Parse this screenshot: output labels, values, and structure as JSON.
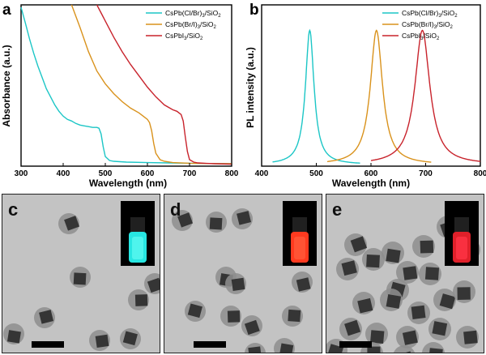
{
  "figure": {
    "panels": {
      "a": "a",
      "b": "b",
      "c": "c",
      "d": "d",
      "e": "e"
    }
  },
  "chart_data": [
    {
      "type": "line",
      "panel": "a",
      "ylabel": "Absorbance (a.u.)",
      "xlabel": "Wavelength (nm)",
      "xlim": [
        300,
        800
      ],
      "xticks": [
        "300",
        "400",
        "500",
        "600",
        "700",
        "800"
      ],
      "y_ticks_shown": false,
      "legend_position": "top-right",
      "series": [
        {
          "name": "CsPb(Cl/Br)3/SiO2",
          "color": "#1cc6c6",
          "x": [
            300,
            310,
            320,
            330,
            340,
            350,
            360,
            370,
            380,
            390,
            400,
            410,
            420,
            430,
            440,
            450,
            460,
            470,
            480,
            485,
            490,
            495,
            500,
            510,
            520,
            550,
            600,
            650,
            700,
            750,
            800
          ],
          "y": [
            0.985,
            0.89,
            0.79,
            0.7,
            0.62,
            0.55,
            0.48,
            0.43,
            0.38,
            0.34,
            0.31,
            0.29,
            0.28,
            0.265,
            0.255,
            0.25,
            0.245,
            0.24,
            0.24,
            0.235,
            0.2,
            0.12,
            0.06,
            0.035,
            0.03,
            0.025,
            0.022,
            0.02,
            0.018,
            0.016,
            0.015
          ]
        },
        {
          "name": "CsPb(Br/I)3/SiO2",
          "color": "#d9921c",
          "x": [
            420,
            440,
            460,
            480,
            500,
            520,
            540,
            560,
            580,
            590,
            600,
            605,
            610,
            615,
            620,
            630,
            640,
            660,
            700,
            750,
            800
          ],
          "y": [
            1.0,
            0.86,
            0.71,
            0.59,
            0.51,
            0.45,
            0.4,
            0.36,
            0.33,
            0.31,
            0.29,
            0.27,
            0.22,
            0.14,
            0.08,
            0.04,
            0.03,
            0.022,
            0.018,
            0.016,
            0.015
          ]
        },
        {
          "name": "CsPbI3/SiO2",
          "color": "#c8232c",
          "x": [
            480,
            500,
            520,
            540,
            560,
            580,
            600,
            620,
            640,
            660,
            670,
            680,
            685,
            690,
            695,
            700,
            710,
            720,
            740,
            760,
            800
          ],
          "y": [
            1.0,
            0.9,
            0.8,
            0.71,
            0.63,
            0.56,
            0.49,
            0.43,
            0.38,
            0.35,
            0.34,
            0.32,
            0.28,
            0.18,
            0.09,
            0.04,
            0.025,
            0.02,
            0.017,
            0.015,
            0.012
          ]
        }
      ]
    },
    {
      "type": "line",
      "panel": "b",
      "ylabel": "PL intensity (a.u.)",
      "xlabel": "Wavelength (nm)",
      "xlim": [
        400,
        800
      ],
      "xticks": [
        "400",
        "500",
        "600",
        "700",
        "800"
      ],
      "y_ticks_shown": false,
      "legend_position": "top-right",
      "series": [
        {
          "name": "CsPb(Cl/Br)3/SiO2",
          "color": "#1cc6c6",
          "peak_x": 488,
          "peak_y": 0.84,
          "fwhm": 19,
          "x_min": 420,
          "x_max": 580
        },
        {
          "name": "CsPb(Br/I)3/SiO2",
          "color": "#d9921c",
          "peak_x": 610,
          "peak_y": 0.84,
          "fwhm": 27,
          "x_min": 520,
          "x_max": 710
        },
        {
          "name": "CsPbI3/SiO2",
          "color": "#c8232c",
          "peak_x": 694,
          "peak_y": 0.84,
          "fwhm": 33,
          "x_min": 600,
          "x_max": 800
        }
      ]
    }
  ],
  "tem_panels": [
    {
      "label": "c",
      "inset_glow": "#27e6e2",
      "inset_core": "#5af7f0"
    },
    {
      "label": "d",
      "inset_glow": "#ff3a1f",
      "inset_core": "#ff5a3a"
    },
    {
      "label": "e",
      "inset_glow": "#e0202a",
      "inset_core": "#ff3546"
    }
  ],
  "legend_labels": {
    "s1_pre": "CsPb(Cl/Br)",
    "s1_sub": "3",
    "s1_post": "/SiO",
    "s1_sub2": "2",
    "s2_pre": "CsPb(Br/I)",
    "s2_sub": "3",
    "s2_post": "/SiO",
    "s2_sub2": "2",
    "s3_pre": "CsPbI",
    "s3_sub": "3",
    "s3_post": "/SiO",
    "s3_sub2": "2"
  }
}
